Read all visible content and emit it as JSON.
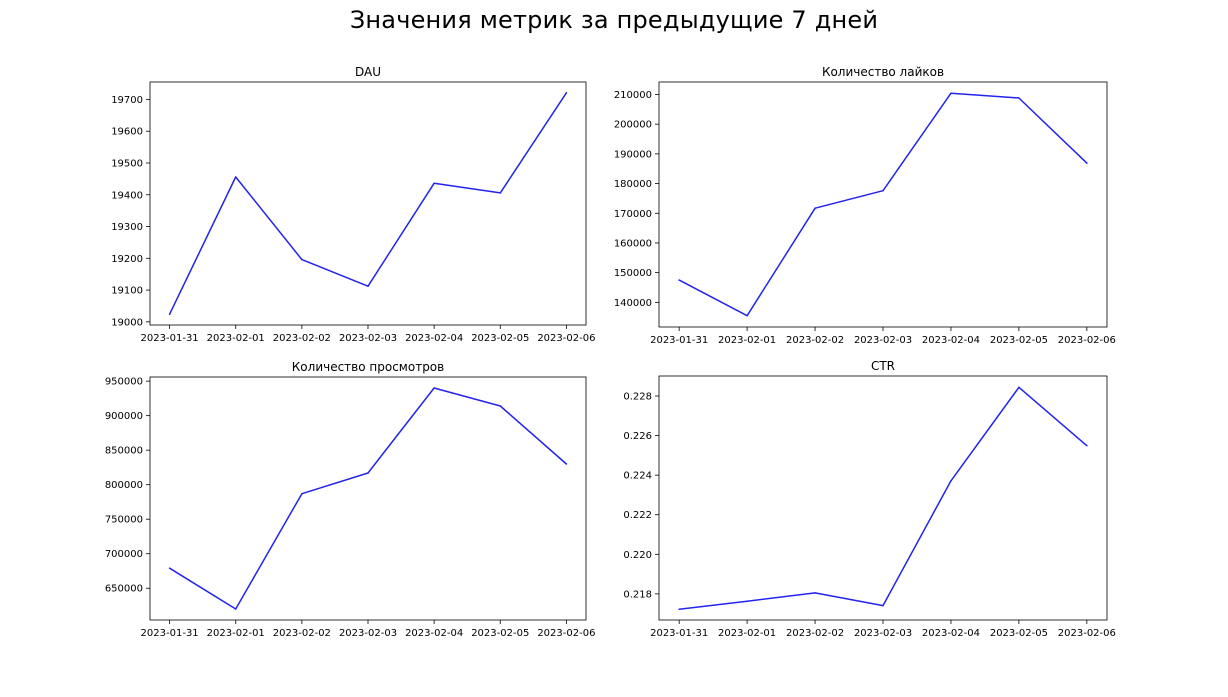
{
  "suptitle": "Значения метрик за предыдущие 7 дней",
  "series_color": "#2323ee",
  "chart_data": [
    {
      "type": "line",
      "title": "DAU",
      "x": [
        "2023-01-31",
        "2023-02-01",
        "2023-02-02",
        "2023-02-03",
        "2023-02-04",
        "2023-02-05",
        "2023-02-06"
      ],
      "values": [
        19024,
        19456,
        19196,
        19112,
        19436,
        19406,
        19721
      ],
      "yticks": [
        19000,
        19100,
        19200,
        19300,
        19400,
        19500,
        19600,
        19700
      ],
      "ytick_labels": [
        "19000",
        "19100",
        "19200",
        "19300",
        "19400",
        "19500",
        "19600",
        "19700"
      ],
      "ylim": [
        18990,
        19755
      ]
    },
    {
      "type": "line",
      "title": "Количество лайков",
      "x": [
        "2023-01-31",
        "2023-02-01",
        "2023-02-02",
        "2023-02-03",
        "2023-02-04",
        "2023-02-05",
        "2023-02-06"
      ],
      "values": [
        147500,
        135500,
        171700,
        177600,
        210400,
        208800,
        186900
      ],
      "yticks": [
        140000,
        150000,
        160000,
        170000,
        180000,
        190000,
        200000,
        210000
      ],
      "ytick_labels": [
        "140000",
        "150000",
        "160000",
        "170000",
        "180000",
        "190000",
        "200000",
        "210000"
      ],
      "ylim": [
        131700,
        214200
      ]
    },
    {
      "type": "line",
      "title": "Количество просмотров",
      "x": [
        "2023-01-31",
        "2023-02-01",
        "2023-02-02",
        "2023-02-03",
        "2023-02-04",
        "2023-02-05",
        "2023-02-06"
      ],
      "values": [
        679000,
        620000,
        787000,
        817000,
        940000,
        914000,
        830000
      ],
      "yticks": [
        650000,
        700000,
        750000,
        800000,
        850000,
        900000,
        950000
      ],
      "ytick_labels": [
        "650000",
        "700000",
        "750000",
        "800000",
        "850000",
        "900000",
        "950000"
      ],
      "ylim": [
        604000,
        956000
      ]
    },
    {
      "type": "line",
      "title": "CTR",
      "x": [
        "2023-01-31",
        "2023-02-01",
        "2023-02-02",
        "2023-02-03",
        "2023-02-04",
        "2023-02-05",
        "2023-02-06"
      ],
      "values": [
        0.21722,
        0.21763,
        0.21805,
        0.21741,
        0.22371,
        0.22844,
        0.22549
      ],
      "yticks": [
        0.218,
        0.22,
        0.222,
        0.224,
        0.226,
        0.228
      ],
      "ytick_labels": [
        "0.218",
        "0.220",
        "0.222",
        "0.224",
        "0.226",
        "0.228"
      ],
      "ylim": [
        0.21668,
        0.22901
      ]
    }
  ]
}
